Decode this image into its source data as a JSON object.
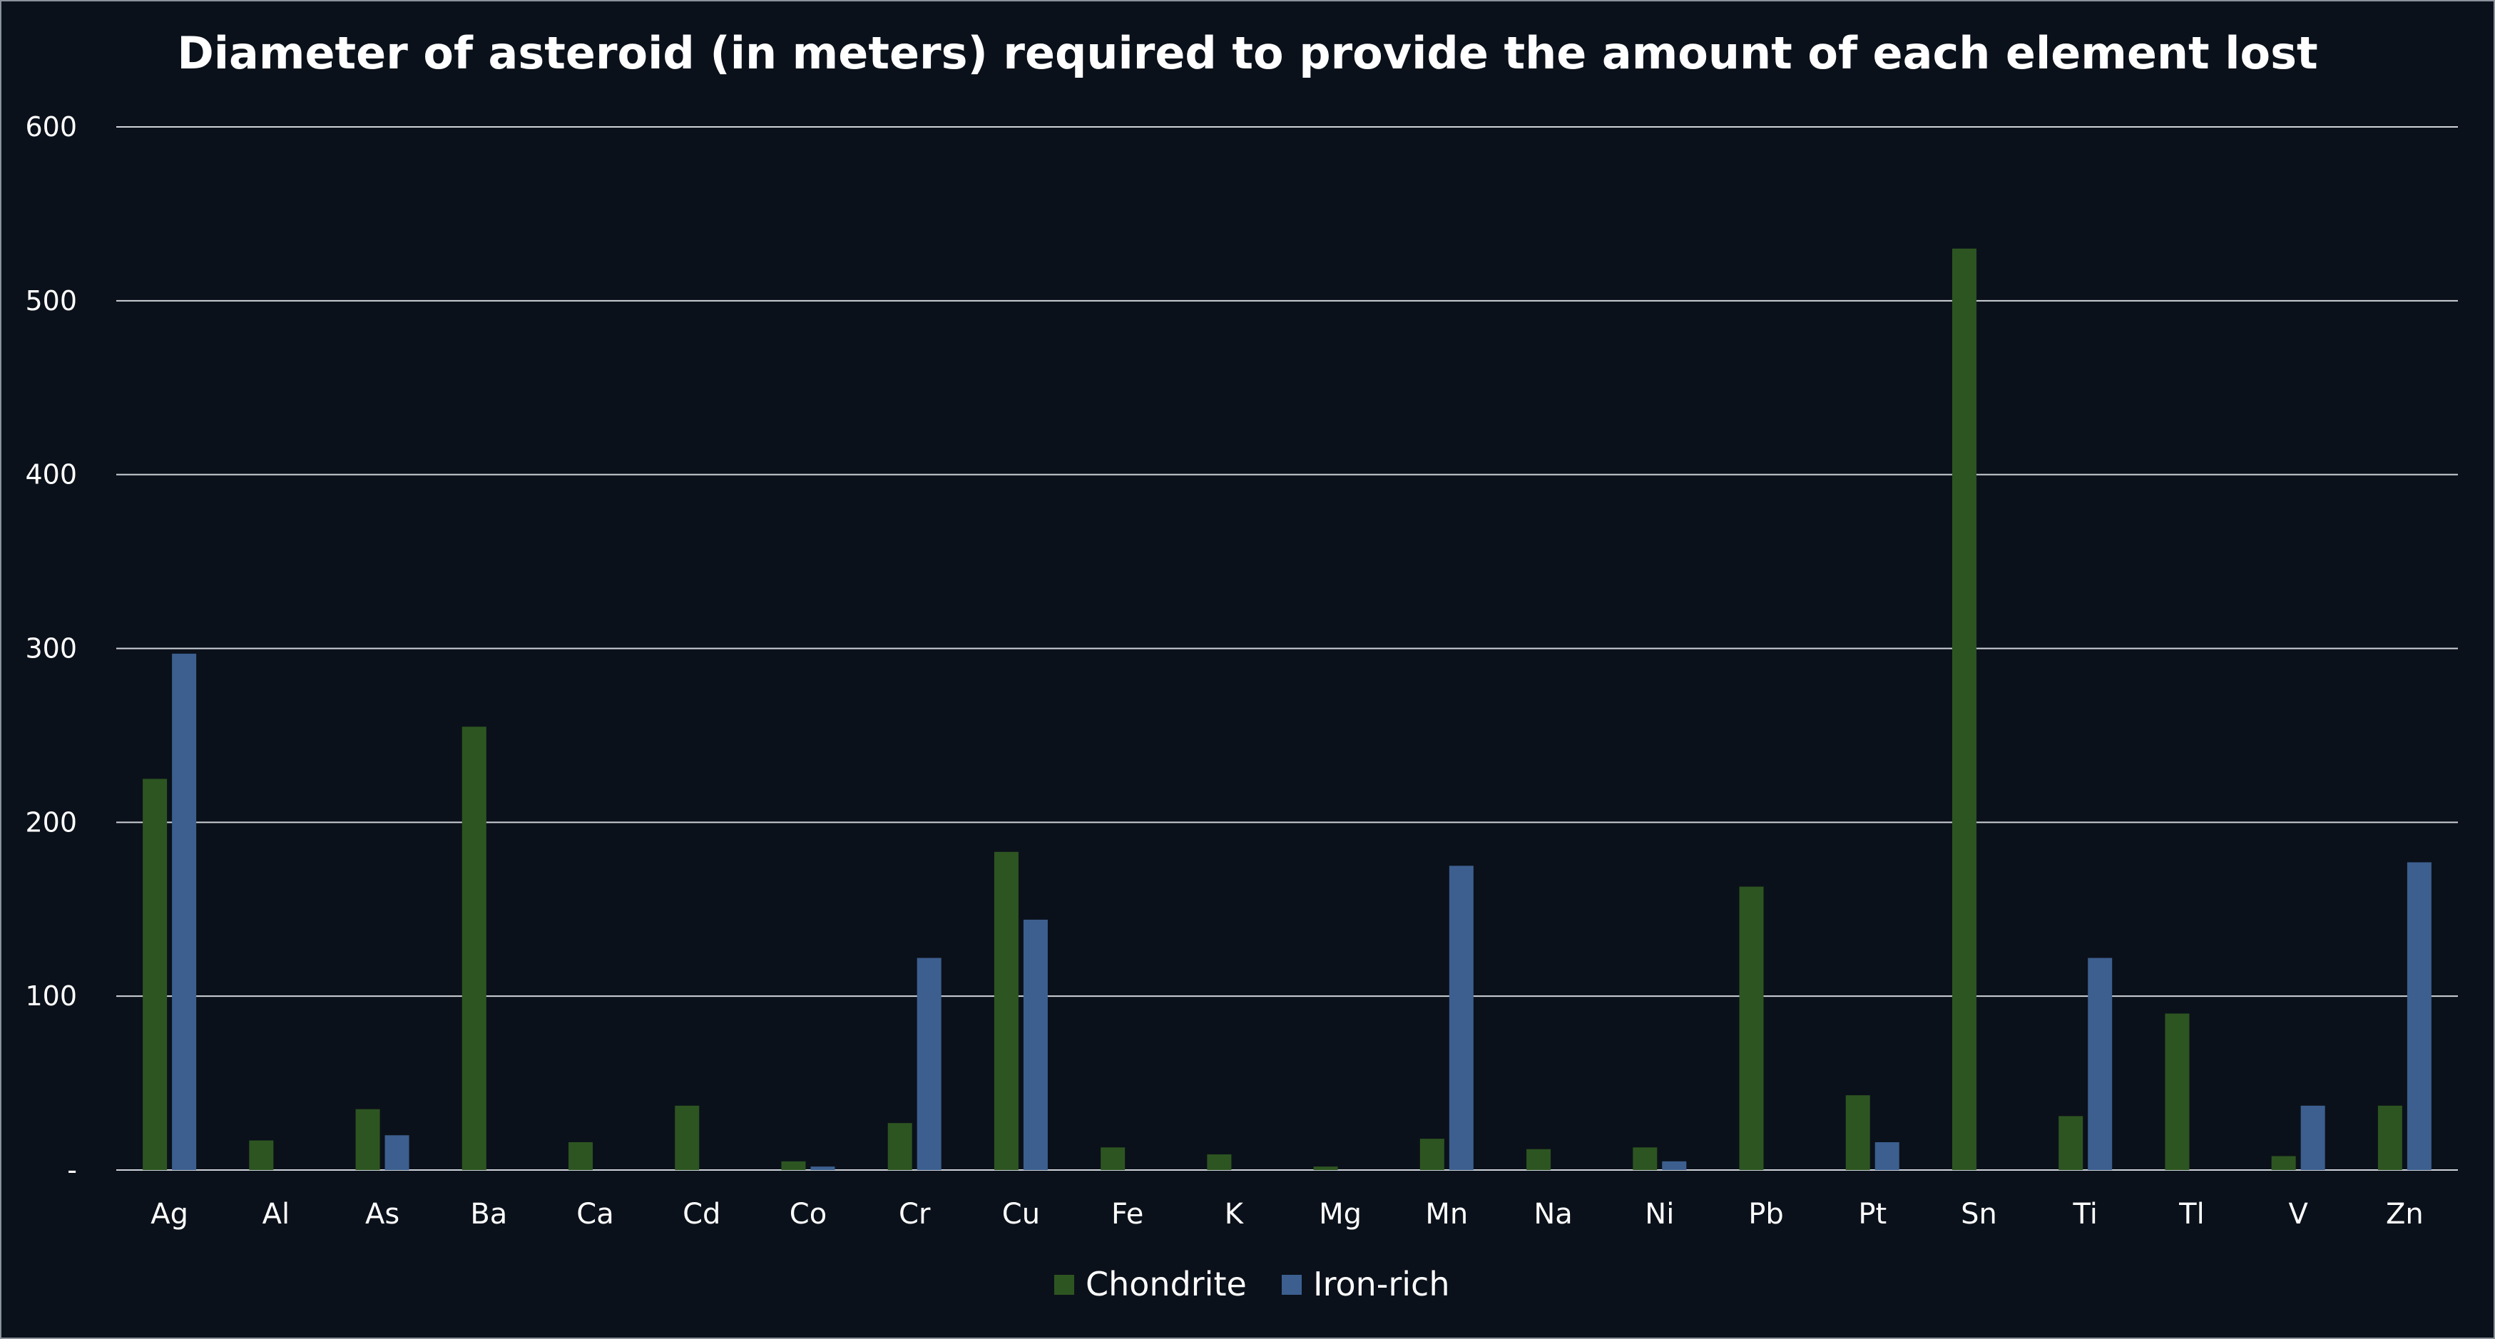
{
  "colors": {
    "background": "#0b111a",
    "chondrite": "#2d5521",
    "iron_rich": "#3c5f8f",
    "grid": "#d0d4da",
    "text": "#ffffff"
  },
  "chart_data": {
    "type": "bar",
    "title": "Diameter of asteroid (in meters) required to provide the amount of each element lost",
    "xlabel": "",
    "ylabel": "",
    "ylim": [
      0,
      600
    ],
    "yticks": [
      0,
      100,
      200,
      300,
      400,
      500,
      600
    ],
    "ytick_labels": [
      "-",
      "100",
      "200",
      "300",
      "400",
      "500",
      "600"
    ],
    "grid": true,
    "legend_position": "bottom",
    "categories": [
      "Ag",
      "Al",
      "As",
      "Ba",
      "Ca",
      "Cd",
      "Co",
      "Cr",
      "Cu",
      "Fe",
      "K",
      "Mg",
      "Mn",
      "Na",
      "Ni",
      "Pb",
      "Pt",
      "Sn",
      "Ti",
      "Tl",
      "V",
      "Zn"
    ],
    "series": [
      {
        "name": "Chondrite",
        "color": "#2d5521",
        "values": [
          225,
          17,
          35,
          255,
          16,
          37,
          5,
          27,
          183,
          13,
          9,
          2,
          18,
          12,
          13,
          163,
          43,
          530,
          31,
          90,
          8,
          37
        ]
      },
      {
        "name": "Iron-rich",
        "color": "#3c5f8f",
        "values": [
          297,
          0,
          20,
          0,
          0,
          0,
          2,
          122,
          144,
          0,
          0,
          0,
          175,
          0,
          5,
          0,
          16,
          0,
          122,
          0,
          37,
          177
        ]
      }
    ]
  }
}
